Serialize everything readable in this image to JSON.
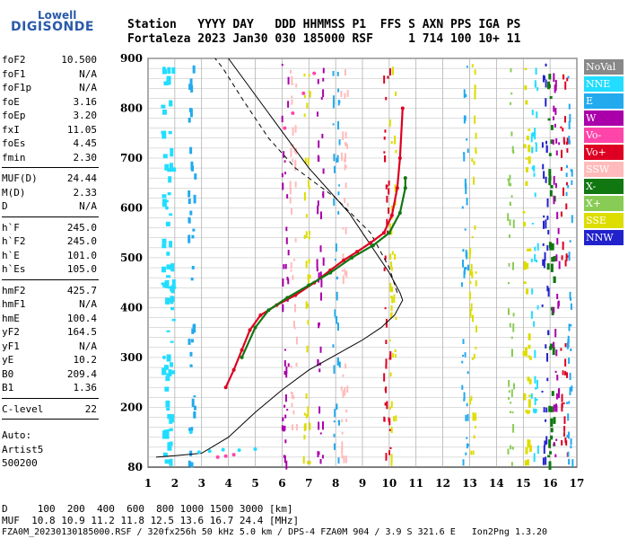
{
  "logo": {
    "line1": "Lowell",
    "line2": "DIGISONDE"
  },
  "header": {
    "row1": "Station   YYYY DAY   DDD HHMMSS P1  FFS S AXN PPS IGA PS",
    "row2": "Fortaleza 2023 Jan30 030 185000 RSF     1 714 100 10+ 11"
  },
  "params": {
    "group1": [
      {
        "k": "foF2",
        "v": "10.500"
      },
      {
        "k": "foF1",
        "v": "N/A"
      },
      {
        "k": "foF1p",
        "v": "N/A"
      },
      {
        "k": "foE",
        "v": "3.16"
      },
      {
        "k": "foEp",
        "v": "3.20"
      },
      {
        "k": "fxI",
        "v": "11.05"
      },
      {
        "k": "foEs",
        "v": "4.45"
      },
      {
        "k": "fmin",
        "v": "2.30"
      }
    ],
    "group2": [
      {
        "k": "MUF(D)",
        "v": "24.44"
      },
      {
        "k": "M(D)",
        "v": "2.33"
      },
      {
        "k": "D",
        "v": "N/A"
      }
    ],
    "group3": [
      {
        "k": "h`F",
        "v": "245.0"
      },
      {
        "k": "h`F2",
        "v": "245.0"
      },
      {
        "k": "h`E",
        "v": "101.0"
      },
      {
        "k": "h`Es",
        "v": "105.0"
      }
    ],
    "group4": [
      {
        "k": "hmF2",
        "v": "425.7"
      },
      {
        "k": "hmF1",
        "v": "N/A"
      },
      {
        "k": "hmE",
        "v": "100.4"
      },
      {
        "k": "yF2",
        "v": "164.5"
      },
      {
        "k": "yF1",
        "v": "N/A"
      },
      {
        "k": "yE",
        "v": "10.2"
      },
      {
        "k": "B0",
        "v": "209.4"
      },
      {
        "k": "B1",
        "v": "1.36"
      }
    ],
    "group5": [
      {
        "k": "C-level",
        "v": "22"
      }
    ],
    "auto": [
      "Auto:",
      "Artist5",
      "500200"
    ]
  },
  "legend": [
    {
      "label": "NoVal",
      "color": "#888888"
    },
    {
      "label": "NNE",
      "color": "#22ddff"
    },
    {
      "label": "E",
      "color": "#22aaee"
    },
    {
      "label": "W",
      "color": "#aa00aa"
    },
    {
      "label": "Vo-",
      "color": "#ff44aa"
    },
    {
      "label": "Vo+",
      "color": "#dd0022"
    },
    {
      "label": "SSW",
      "color": "#ffbbbb"
    },
    {
      "label": "X-",
      "color": "#117711"
    },
    {
      "label": "X+",
      "color": "#88cc55"
    },
    {
      "label": "SSE",
      "color": "#dddd00"
    },
    {
      "label": "NNW",
      "color": "#2222cc"
    }
  ],
  "footer": {
    "d_row": "D     100  200  400  600  800 1000 1500 3000 [km]",
    "muf_row": "MUF  10.8 10.9 11.2 11.8 12.5 13.6 16.7 24.4 [MHz]",
    "file_row": "FZA0M_20230130185000.RSF / 320fx256h 50 kHz 5.0 km / DPS-4 FZA0M 904 / 3.9 S 321.6 E   Ion2Png 1.3.20"
  },
  "chart_data": {
    "type": "scatter",
    "title": "",
    "xlabel": "",
    "ylabel": "",
    "xlim": [
      1,
      17
    ],
    "ylim": [
      80,
      900
    ],
    "x_ticks": [
      1,
      2,
      3,
      4,
      5,
      6,
      7,
      8,
      9,
      10,
      11,
      12,
      13,
      14,
      15,
      16,
      17
    ],
    "y_ticks": [
      80,
      200,
      300,
      400,
      500,
      600,
      700,
      800,
      900
    ],
    "grid": true,
    "series": [
      {
        "name": "Vo+",
        "color": "#dd0022",
        "points": [
          [
            3.9,
            240
          ],
          [
            4.2,
            275
          ],
          [
            4.5,
            315
          ],
          [
            4.8,
            355
          ],
          [
            5.2,
            385
          ],
          [
            5.8,
            405
          ],
          [
            6.5,
            425
          ],
          [
            7.2,
            450
          ],
          [
            7.8,
            475
          ],
          [
            8.3,
            495
          ],
          [
            8.8,
            512
          ],
          [
            9.3,
            530
          ],
          [
            9.8,
            550
          ],
          [
            10.1,
            585
          ],
          [
            10.3,
            640
          ],
          [
            10.4,
            700
          ],
          [
            10.5,
            800
          ]
        ]
      },
      {
        "name": "X-",
        "color": "#117711",
        "points": [
          [
            4.5,
            300
          ],
          [
            5.0,
            360
          ],
          [
            5.5,
            395
          ],
          [
            6.2,
            420
          ],
          [
            7.0,
            445
          ],
          [
            7.8,
            470
          ],
          [
            8.6,
            500
          ],
          [
            9.4,
            525
          ],
          [
            10.0,
            550
          ],
          [
            10.4,
            590
          ],
          [
            10.6,
            640
          ],
          [
            10.6,
            660
          ]
        ]
      },
      {
        "name": "Vo-",
        "color": "#ff44aa",
        "points": [
          [
            3.6,
            100
          ],
          [
            3.9,
            102
          ],
          [
            4.2,
            105
          ],
          [
            6.1,
            760
          ],
          [
            6.4,
            790
          ],
          [
            6.8,
            830
          ],
          [
            7.2,
            870
          ]
        ]
      },
      {
        "name": "NNE",
        "color": "#22ddff",
        "points": [
          [
            2.9,
            110
          ],
          [
            3.3,
            112
          ],
          [
            3.8,
            115
          ],
          [
            4.4,
            114
          ],
          [
            5.0,
            116
          ],
          [
            1.6,
            880
          ],
          [
            1.7,
            600
          ],
          [
            1.6,
            300
          ],
          [
            2.6,
            150
          ]
        ]
      }
    ],
    "profile": {
      "name": "",
      "points": [
        [
          1.3,
          100
        ],
        [
          2.0,
          103
        ],
        [
          3.0,
          108
        ],
        [
          4.0,
          140
        ],
        [
          5.0,
          190
        ],
        [
          6.0,
          235
        ],
        [
          7.0,
          275
        ],
        [
          8.0,
          305
        ],
        [
          9.0,
          335
        ],
        [
          9.7,
          360
        ],
        [
          10.2,
          385
        ],
        [
          10.5,
          415
        ],
        [
          10.4,
          430
        ],
        [
          10.0,
          470
        ],
        [
          8.5,
          590
        ],
        [
          7.0,
          680
        ],
        [
          5.5,
          790
        ],
        [
          4.0,
          900
        ]
      ]
    },
    "dashed_curve": {
      "name": "",
      "points": [
        [
          10.3,
          430
        ],
        [
          10.0,
          480
        ],
        [
          9.3,
          550
        ],
        [
          8.0,
          620
        ],
        [
          6.5,
          680
        ],
        [
          5.5,
          740
        ],
        [
          4.5,
          820
        ],
        [
          3.8,
          880
        ],
        [
          3.5,
          900
        ]
      ]
    }
  }
}
